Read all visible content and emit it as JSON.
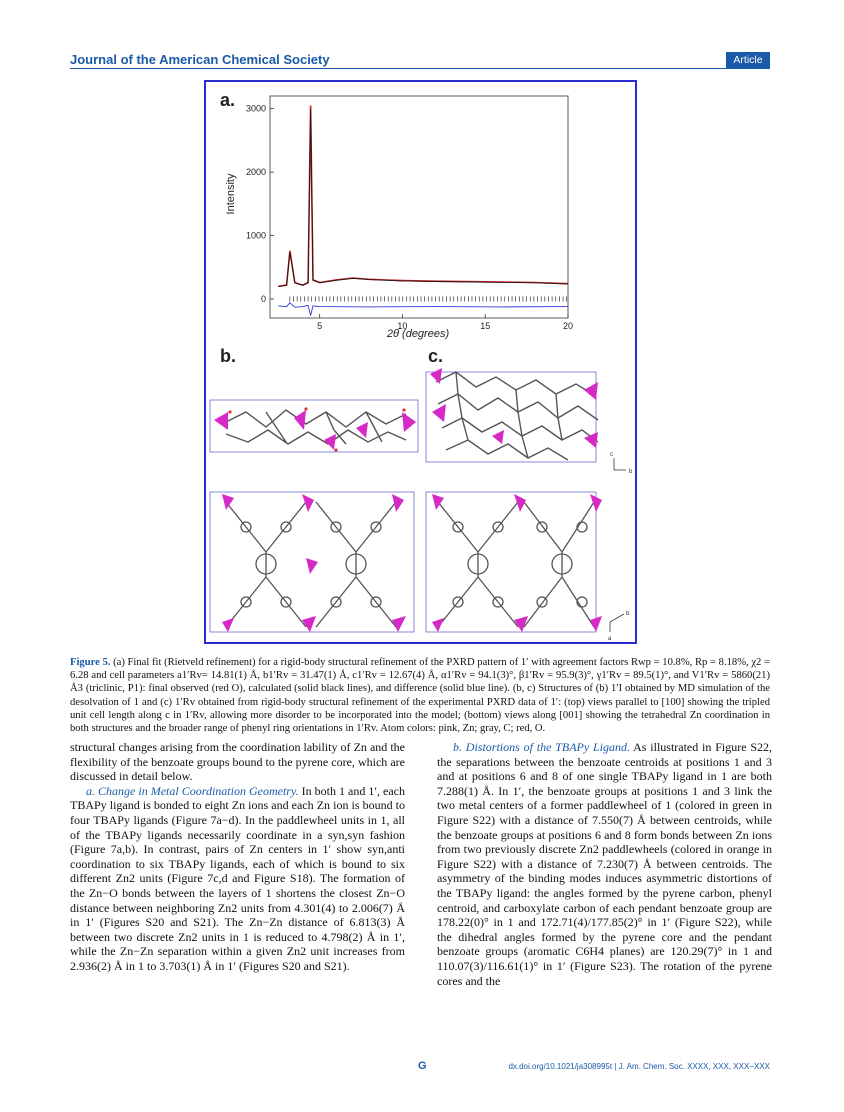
{
  "header": {
    "journal": "Journal of the American Chemical Society",
    "badge": "Article"
  },
  "figure": {
    "panel_a_label": "a.",
    "panel_b_label": "b.",
    "panel_c_label": "c.",
    "xlabel": "2θ (degrees)",
    "ylabel": "Intensity",
    "axis_c_label": "c",
    "axis_b_label": "b",
    "axis_b2_label": "b",
    "axis_a_label": "a",
    "chart_data": {
      "type": "line",
      "xlabel": "2θ (degrees)",
      "ylabel": "Intensity",
      "xlim": [
        2,
        20
      ],
      "ylim": [
        -300,
        3200
      ],
      "xticks": [
        5,
        10,
        15,
        20
      ],
      "yticks": [
        0,
        1000,
        2000,
        3000
      ],
      "series": [
        {
          "color": "#d42020",
          "x": [
            2.5,
            3.0,
            3.2,
            3.5,
            3.8,
            4.0,
            4.3,
            4.45,
            4.6,
            5.0,
            6.0,
            7.0,
            8.0,
            10.0,
            12.0,
            15.0,
            18.0,
            20.0
          ],
          "y": [
            200,
            220,
            760,
            260,
            230,
            220,
            260,
            3050,
            300,
            260,
            300,
            330,
            310,
            290,
            280,
            270,
            260,
            240
          ]
        },
        {
          "color": "#1a1a1a",
          "x": [
            2.5,
            3.0,
            3.2,
            3.5,
            3.8,
            4.0,
            4.3,
            4.45,
            4.6,
            5.0,
            6.0,
            7.0,
            8.0,
            10.0,
            12.0,
            15.0,
            18.0,
            20.0
          ],
          "y": [
            195,
            215,
            740,
            255,
            228,
            218,
            255,
            3000,
            295,
            255,
            295,
            325,
            305,
            285,
            275,
            265,
            255,
            238
          ]
        },
        {
          "color": "#2d3ad6",
          "x": [
            2.5,
            3.0,
            3.2,
            3.5,
            4.0,
            4.3,
            4.45,
            4.6,
            5.0,
            8.0,
            12.0,
            16.0,
            20.0
          ],
          "y": [
            -110,
            -120,
            -60,
            -130,
            -120,
            -100,
            -260,
            -110,
            -120,
            -125,
            -120,
            -125,
            -120
          ]
        }
      ]
    }
  },
  "caption": {
    "label": "Figure 5.",
    "text": " (a) Final fit (Rietveld refinement) for a rigid-body structural refinement of the PXRD pattern of 1′ with agreement factors Rwp = 10.8%, Rp = 8.18%, χ2 = 6.28 and cell parameters a1′Rv= 14.81(1) Å, b1′Rv = 31.47(1) Å, c1′Rv = 12.67(4) Å, α1′Rv = 94.1(3)°, β1′Rv = 95.9(3)°, γ1′Rv = 89.5(1)°, and V1′Rv = 5860(21) Å3 (triclinic, P1): final observed (red O), calculated (solid black lines), and difference (solid blue line). (b, c) Structures of (b) 1′I obtained by MD simulation of the desolvation of 1 and (c) 1′Rv obtained from rigid-body structural refinement of the experimental PXRD data of 1′: (top) views parallel to [100] showing the tripled unit cell length along c in 1′Rv, allowing more disorder to be incorporated into the model; (bottom) views along [001] showing the tetrahedral Zn coordination in both structures and the broader range of phenyl ring orientations in 1′Rv. Atom colors: pink, Zn; gray, C; red, O."
  },
  "left_column": {
    "p1": "structural changes arising from the coordination lability of Zn and the flexibility of the benzoate groups bound to the pyrene core, which are discussed in detail below.",
    "sub_a": "a. Change in Metal Coordination Geometry.",
    "p2": " In both 1 and 1′, each TBAPy ligand is bonded to eight Zn ions and each Zn ion is bound to four TBAPy ligands (Figure 7a−d). In the paddlewheel units in 1, all of the TBAPy ligands necessarily coordinate in a syn,syn fashion (Figure 7a,b). In contrast, pairs of Zn centers in 1′ show syn,anti coordination to six TBAPy ligands, each of which is bound to six different Zn2 units (Figure 7c,d and Figure S18). The formation of the Zn−O bonds between the layers of 1 shortens the closest Zn−O distance between neighboring Zn2 units from 4.301(4) to 2.006(7) Å in 1′ (Figures S20 and S21). The Zn−Zn distance of 6.813(3) Å between two discrete Zn2 units in 1 is reduced to 4.798(2) Å in 1′, while the Zn−Zn separation within a given Zn2 unit increases from 2.936(2) Å in 1 to 3.703(1) Å in 1′ (Figures S20 and S21)."
  },
  "right_column": {
    "sub_b": "b. Distortions of the TBAPy Ligand.",
    "p1": " As illustrated in Figure S22, the separations between the benzoate centroids at positions 1 and 3 and at positions 6 and 8 of one single TBAPy ligand in 1 are both 7.288(1) Å. In 1′, the benzoate groups at positions 1 and 3 link the two metal centers of a former paddlewheel of 1 (colored in green in Figure S22) with a distance of 7.550(7) Å between centroids, while the benzoate groups at positions 6 and 8 form bonds between Zn ions from two previously discrete Zn2 paddlewheels (colored in orange in Figure S22) with a distance of 7.230(7) Å between centroids. The asymmetry of the binding modes induces asymmetric distortions of the TBAPy ligand: the angles formed by the pyrene carbon, phenyl centroid, and carboxylate carbon of each pendant benzoate group are 178.22(0)° in 1 and 172.71(4)/177.85(2)° in 1′ (Figure S22), while the dihedral angles formed by the pyrene core and the pendant benzoate groups (aromatic C6H4 planes) are 120.29(7)° in 1 and 110.07(3)/116.61(1)° in 1′ (Figure S23). The rotation of the pyrene cores and the"
  },
  "footer": {
    "page": "G",
    "doi": "dx.doi.org/10.1021/ja308995t | J. Am. Chem. Soc. XXXX, XXX, XXX−XXX"
  }
}
